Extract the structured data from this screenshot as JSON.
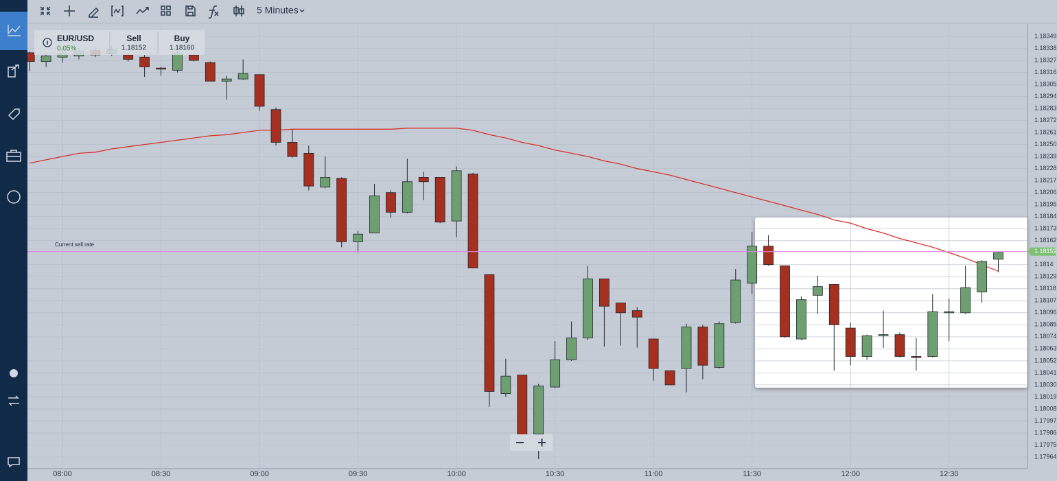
{
  "toolbar": {
    "interval": "5 Minutes"
  },
  "instrument": {
    "symbol": "EUR/USD",
    "change": "0.05%",
    "sell_label": "Sell",
    "sell": "1.18152",
    "buy_label": "Buy",
    "buy": "1.18160"
  },
  "chart_data": {
    "type": "candlestick",
    "categories": [
      null,
      null,
      "08:00",
      null,
      null,
      null,
      null,
      null,
      "08:30",
      null,
      null,
      null,
      null,
      null,
      "09:00",
      null,
      null,
      null,
      null,
      null,
      "09:30",
      null,
      null,
      null,
      null,
      null,
      "10:00",
      null,
      null,
      null,
      null,
      null,
      "10:30",
      null,
      null,
      null,
      null,
      null,
      "11:00",
      null,
      null,
      null,
      null,
      null,
      "11:30",
      null,
      null,
      null,
      null,
      null,
      "12:00",
      null,
      null,
      null,
      null,
      null,
      "12:30",
      null,
      null,
      null
    ],
    "open": [
      1.18334,
      1.18326,
      1.1833,
      1.18331,
      1.18336,
      1.18333,
      1.18332,
      1.1833,
      1.1832,
      1.18318,
      1.18332,
      1.18325,
      1.18308,
      1.1831,
      1.18314,
      1.18282,
      1.18252,
      1.18242,
      1.18211,
      1.18219,
      1.18161,
      1.18169,
      1.18206,
      1.18188,
      1.1822,
      1.1822,
      1.1818,
      1.18223,
      1.18131,
      1.18022,
      1.18039,
      1.17985,
      1.18028,
      1.18053,
      1.18073,
      1.18127,
      1.18105,
      1.18098,
      1.18072,
      1.18043,
      1.18045,
      1.18083,
      1.18046,
      1.18087,
      1.18123,
      1.18157,
      1.18139,
      1.18072,
      1.18112,
      1.18122,
      1.18082,
      1.18056,
      1.18075,
      1.18076,
      1.18056,
      1.18056,
      1.18096,
      1.18096,
      1.18115,
      1.18145
    ],
    "high": [
      1.18335,
      1.18333,
      1.18338,
      1.18338,
      1.18338,
      1.1834,
      1.18335,
      1.18332,
      1.18321,
      1.18336,
      1.18333,
      1.18326,
      1.18313,
      1.18328,
      1.18314,
      1.18284,
      1.18264,
      1.18249,
      1.18239,
      1.1822,
      1.18171,
      1.18214,
      1.18208,
      1.18237,
      1.18225,
      1.1822,
      1.1823,
      1.18224,
      1.18131,
      1.18054,
      1.18039,
      1.18031,
      1.1807,
      1.18088,
      1.18139,
      1.18127,
      1.18105,
      1.18101,
      1.18072,
      1.18043,
      1.18086,
      1.18085,
      1.18088,
      1.18136,
      1.1817,
      1.18167,
      1.18139,
      1.18111,
      1.1813,
      1.18122,
      1.18087,
      1.18076,
      1.18098,
      1.18078,
      1.18073,
      1.18113,
      1.18109,
      1.18139,
      1.18144,
      1.18152
    ],
    "low": [
      1.18317,
      1.18321,
      1.18325,
      1.18328,
      1.1833,
      1.18331,
      1.18326,
      1.18312,
      1.18313,
      1.18316,
      1.18326,
      1.18308,
      1.18291,
      1.18309,
      1.18281,
      1.18249,
      1.18238,
      1.18208,
      1.1821,
      1.18156,
      1.18151,
      1.18169,
      1.18183,
      1.18187,
      1.18199,
      1.18178,
      1.18165,
      1.18137,
      1.1801,
      1.18019,
      1.1798,
      1.17962,
      1.18027,
      1.18052,
      1.18071,
      1.18065,
      1.18066,
      1.18064,
      1.18034,
      1.1803,
      1.18023,
      1.18035,
      1.18045,
      1.18086,
      1.18113,
      1.18139,
      1.18073,
      1.18071,
      1.18095,
      1.18043,
      1.18048,
      1.18053,
      1.18064,
      1.18055,
      1.18043,
      1.18055,
      1.1807,
      1.18095,
      1.18105,
      1.18133
    ],
    "close": [
      1.18326,
      1.18331,
      1.18333,
      1.18335,
      1.18332,
      1.18337,
      1.18328,
      1.18321,
      1.18319,
      1.18333,
      1.18327,
      1.18308,
      1.1831,
      1.18315,
      1.18285,
      1.18252,
      1.18239,
      1.18212,
      1.1822,
      1.18161,
      1.18168,
      1.18203,
      1.18188,
      1.18216,
      1.18216,
      1.18179,
      1.18226,
      1.18137,
      1.18024,
      1.18038,
      1.17983,
      1.18029,
      1.18053,
      1.18073,
      1.18127,
      1.18102,
      1.18096,
      1.18092,
      1.18045,
      1.1803,
      1.18083,
      1.18048,
      1.18086,
      1.18126,
      1.18157,
      1.1814,
      1.18074,
      1.18108,
      1.1812,
      1.18085,
      1.18056,
      1.18075,
      1.18076,
      1.18056,
      1.18055,
      1.18097,
      1.18097,
      1.18119,
      1.18143,
      1.18151
    ],
    "up_color": "#6e9f70",
    "down_color": "#a5301f",
    "moving_average": {
      "color": "#d8322a",
      "values": [
        1.18233,
        1.18236,
        1.18239,
        1.18242,
        1.18243,
        1.18246,
        1.18248,
        1.1825,
        1.18252,
        1.18254,
        1.18256,
        1.18258,
        1.18259,
        1.18261,
        1.18263,
        1.18263,
        1.18264,
        1.18264,
        1.18264,
        1.18264,
        1.18264,
        1.18264,
        1.18264,
        1.18265,
        1.18265,
        1.18265,
        1.18265,
        1.18263,
        1.18259,
        1.18256,
        1.18252,
        1.18249,
        1.18245,
        1.18242,
        1.18239,
        1.18235,
        1.18232,
        1.18228,
        1.18225,
        1.18222,
        1.18218,
        1.18214,
        1.1821,
        1.18206,
        1.18202,
        1.18198,
        1.18194,
        1.1819,
        1.18186,
        1.18181,
        1.18178,
        1.18173,
        1.18169,
        1.18164,
        1.1816,
        1.18156,
        1.18151,
        1.18146,
        1.1814,
        1.18134
      ]
    },
    "current_rate_label": "Current sell rate",
    "current_rate": 1.18152,
    "current_rate_color": "#d98ad9",
    "ylim": [
      1.17953,
      1.1836
    ],
    "yticks": [
      1.18349,
      1.18338,
      1.18327,
      1.18316,
      1.18305,
      1.18294,
      1.18283,
      1.18272,
      1.18261,
      {
        "value": 1.1825,
        "label": "1.18250"
      },
      1.18239,
      1.18228,
      1.18217,
      1.18206,
      1.18195,
      1.18184,
      1.18173,
      1.18162,
      1.1814,
      1.18129,
      1.18118,
      1.18107,
      1.18096,
      1.18085,
      1.18074,
      1.18063,
      1.18052,
      1.18041,
      {
        "value": 1.1803,
        "label": "1.18030"
      },
      1.18019,
      1.18008,
      1.17997,
      1.17986,
      1.17975,
      1.17964
    ],
    "grid": true
  }
}
